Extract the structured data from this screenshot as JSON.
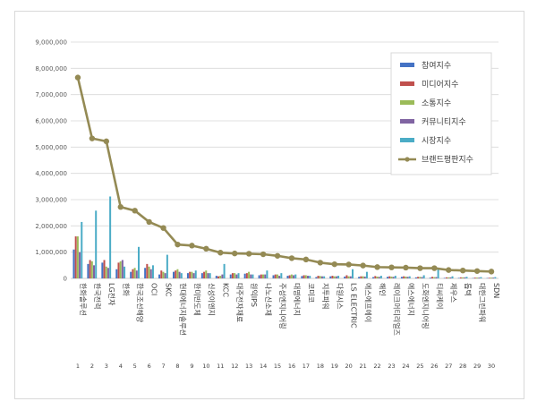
{
  "chart_data": {
    "type": "bar",
    "title": "",
    "xlabel": "",
    "ylabel": "",
    "ylim": [
      0,
      9000000
    ],
    "ytick_step": 1000000,
    "grid": true,
    "legend_position": "top-right",
    "x_numbers": [
      "1",
      "2",
      "3",
      "4",
      "5",
      "6",
      "7",
      "8",
      "9",
      "10",
      "11",
      "12",
      "13",
      "14",
      "15",
      "16",
      "17",
      "18",
      "19",
      "20",
      "21",
      "22",
      "23",
      "24",
      "25",
      "26",
      "27",
      "28",
      "29",
      "30"
    ],
    "categories": [
      "한화솔루션",
      "한국전력",
      "LG전자",
      "한화",
      "한국조선해양",
      "OCI",
      "SKC",
      "현대에너지솔루션",
      "한미반도체",
      "신성이엔지",
      "KCC",
      "대주전자재료",
      "원익IPS",
      "나노신소재",
      "주성엔지니어링",
      "대명에너지",
      "코미코",
      "지투파워",
      "다원시스",
      "LS ELECTRIC",
      "에스에프에이",
      "해인",
      "레이크머티리얼즈",
      "에스에너지",
      "도화엔지니어링",
      "티씨케이",
      "제우스",
      "톱텍",
      "대한그린파워",
      "SDN"
    ],
    "series": [
      {
        "name": "참여지수",
        "type": "bar",
        "color": "#4472c4",
        "values": [
          1100000,
          550000,
          600000,
          350000,
          250000,
          400000,
          150000,
          250000,
          200000,
          200000,
          100000,
          150000,
          180000,
          120000,
          120000,
          100000,
          90000,
          50000,
          80000,
          70000,
          60000,
          50000,
          60000,
          60000,
          40000,
          30000,
          20000,
          20000,
          15000,
          15000
        ]
      },
      {
        "name": "미디어지수",
        "type": "bar",
        "color": "#c0504d",
        "values": [
          1600000,
          700000,
          700000,
          600000,
          350000,
          550000,
          300000,
          300000,
          250000,
          250000,
          80000,
          200000,
          200000,
          150000,
          150000,
          120000,
          120000,
          100000,
          100000,
          120000,
          80000,
          90000,
          80000,
          80000,
          60000,
          60000,
          40000,
          40000,
          30000,
          25000
        ]
      },
      {
        "name": "소통지수",
        "type": "bar",
        "color": "#9bbb59",
        "values": [
          1600000,
          650000,
          450000,
          650000,
          400000,
          450000,
          250000,
          350000,
          250000,
          300000,
          100000,
          200000,
          250000,
          150000,
          150000,
          150000,
          120000,
          90000,
          80000,
          80000,
          80000,
          70000,
          70000,
          70000,
          60000,
          50000,
          40000,
          40000,
          30000,
          30000
        ]
      },
      {
        "name": "커뮤니티지수",
        "type": "bar",
        "color": "#8064a2",
        "values": [
          1000000,
          500000,
          400000,
          700000,
          300000,
          350000,
          200000,
          250000,
          200000,
          200000,
          150000,
          150000,
          150000,
          150000,
          100000,
          120000,
          100000,
          80000,
          80000,
          80000,
          70000,
          60000,
          60000,
          60000,
          50000,
          50000,
          40000,
          40000,
          30000,
          30000
        ]
      },
      {
        "name": "시장지수",
        "type": "bar",
        "color": "#4bacc6",
        "values": [
          2150000,
          2580000,
          3120000,
          450000,
          1200000,
          500000,
          900000,
          200000,
          300000,
          200000,
          550000,
          200000,
          150000,
          300000,
          200000,
          150000,
          100000,
          80000,
          100000,
          350000,
          250000,
          100000,
          100000,
          80000,
          120000,
          350000,
          80000,
          60000,
          50000,
          50000
        ]
      },
      {
        "name": "브랜드평판지수",
        "type": "line",
        "color": "#948a54",
        "values": [
          7650000,
          5330000,
          5220000,
          2720000,
          2580000,
          2150000,
          1920000,
          1290000,
          1250000,
          1130000,
          980000,
          950000,
          940000,
          920000,
          860000,
          770000,
          720000,
          600000,
          540000,
          530000,
          490000,
          430000,
          420000,
          410000,
          390000,
          390000,
          320000,
          300000,
          280000,
          260000
        ]
      }
    ]
  }
}
